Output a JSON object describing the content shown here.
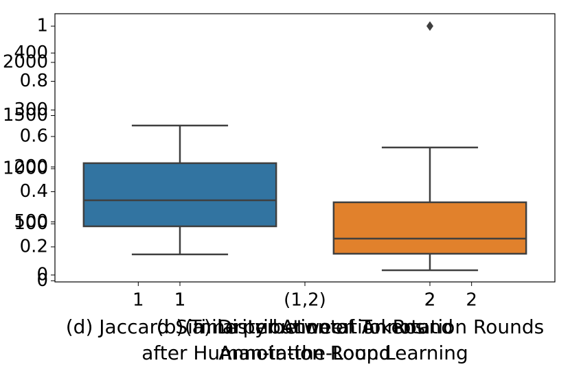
{
  "chart_data": [
    {
      "type": "box",
      "title": [
        "(d) Jaccard Similarity between Annotation Rounds",
        "after Human-in-the-Loop Learning"
      ],
      "categories": [
        "1",
        "2"
      ],
      "colors": [
        "#3274a1",
        "#e1812c"
      ],
      "boxes": [
        {
          "whislo": 194,
          "q1": 458,
          "med": 703,
          "q3": 1052,
          "whishi": 1406,
          "fliers": []
        },
        {
          "whislo": 45,
          "q1": 200,
          "med": 342,
          "q3": 684,
          "whishi": 1200,
          "fliers": [
            2342
          ]
        }
      ],
      "ylim": [
        -65,
        2458
      ],
      "yticks": [
        0,
        500,
        1000,
        1500,
        2000
      ]
    },
    {
      "type": "box",
      "title": [
        "(a) Distribution of Tokens",
        "Annotation Round"
      ],
      "categories": [
        "1",
        "(1,2)",
        "2"
      ],
      "boxes": [],
      "ylim": [
        0.073,
        1.045
      ],
      "yticks": [
        0.2,
        0.4,
        0.6,
        0.8,
        1.0
      ]
    },
    {
      "type": "box",
      "title": [
        "(b) Time per Annotation Round",
        "Annotation Round"
      ],
      "categories": [
        "1",
        "2"
      ],
      "boxes": [],
      "ylim": [
        -2,
        469
      ],
      "yticks": [
        0,
        100,
        200,
        300,
        400
      ]
    }
  ]
}
